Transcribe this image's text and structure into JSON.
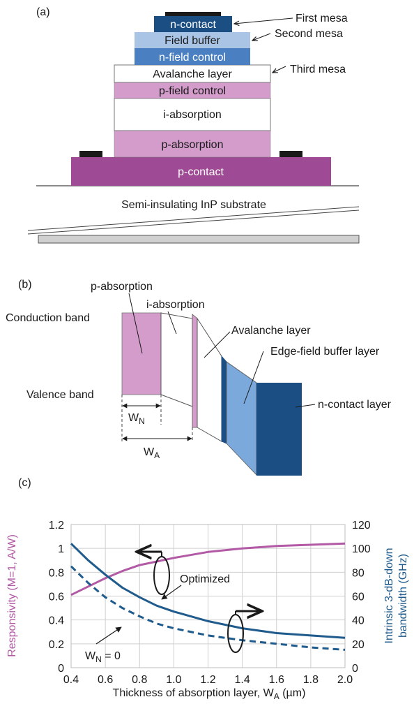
{
  "panel_a": {
    "label": "(a)",
    "layers": {
      "n_contact": "n-contact",
      "field_buffer": "Field buffer",
      "n_field_control": "n-field control",
      "avalanche": "Avalanche layer",
      "p_field_control": "p-field control",
      "i_absorption": "i-absorption",
      "p_absorption": "p-absorption",
      "p_contact": "p-contact"
    },
    "callouts": {
      "first_mesa": "First mesa",
      "second_mesa": "Second mesa",
      "third_mesa": "Third mesa"
    },
    "substrate": "Semi-insulating InP substrate"
  },
  "panel_b": {
    "label": "(b)",
    "conduction_band": "Conduction band",
    "valence_band": "Valence band",
    "p_absorption": "p-absorption",
    "i_absorption": "i-absorption",
    "avalanche": "Avalanche layer",
    "edge_field": "Edge-field buffer layer",
    "n_contact": "n-contact layer",
    "wn_main": "W",
    "wn_sub": "N",
    "wa_main": "W",
    "wa_sub": "A"
  },
  "panel_c": {
    "label": "(c)",
    "ylabel_left": "Responsivity (M=1, A/W)",
    "ylabel_right_1": "Intrinsic 3-dB-down",
    "ylabel_right_2": "bandwidth (GHz)",
    "xlabel_main": "Thickness of absorption layer, W",
    "xlabel_sub": "A",
    "xlabel_unit": " (µm)",
    "annot_optimized": "Optimized",
    "annot_wn_main": "W",
    "annot_wn_sub": "N",
    "annot_wn_eq": " = 0",
    "colors": {
      "responsivity": "#b35aa6",
      "bandwidth": "#1f5b8c"
    }
  },
  "chart_data": {
    "type": "line",
    "title": "",
    "xlabel": "Thickness of absorption layer, WA (µm)",
    "ylabel": "Responsivity (M=1, A/W)",
    "ylabel_right": "Intrinsic 3-dB-down bandwidth (GHz)",
    "xlim": [
      0.4,
      2.0
    ],
    "ylim": [
      0,
      1.2
    ],
    "ylim_right": [
      0,
      120
    ],
    "grid": true,
    "xticks": [
      "0.4",
      "0.6",
      "0.8",
      "1.0",
      "1.2",
      "1.4",
      "1.6",
      "1.8",
      "2.0"
    ],
    "yticks_left": [
      "0",
      "0.2",
      "0.4",
      "0.6",
      "0.8",
      "1",
      "1.2"
    ],
    "yticks_right": [
      "0",
      "20",
      "40",
      "60",
      "80",
      "100",
      "120"
    ],
    "series": [
      {
        "axis": "left",
        "style": "solid",
        "x": [
          0.4,
          0.5,
          0.6,
          0.7,
          0.8,
          0.9,
          1.0,
          1.2,
          1.4,
          1.6,
          1.8,
          2.0
        ],
        "y": [
          0.61,
          0.68,
          0.75,
          0.81,
          0.86,
          0.89,
          0.92,
          0.97,
          1.0,
          1.02,
          1.03,
          1.04
        ]
      },
      {
        "name": "Optimized",
        "axis": "right",
        "style": "solid",
        "x": [
          0.4,
          0.5,
          0.6,
          0.7,
          0.8,
          0.9,
          1.0,
          1.2,
          1.4,
          1.6,
          1.8,
          2.0
        ],
        "y": [
          104,
          90,
          78,
          67,
          59,
          52,
          47,
          39,
          33,
          29,
          27,
          25
        ]
      },
      {
        "name": "WN = 0",
        "axis": "right",
        "style": "dashed",
        "x": [
          0.4,
          0.5,
          0.6,
          0.7,
          0.8,
          0.9,
          1.0,
          1.2,
          1.4,
          1.6,
          1.8,
          2.0
        ],
        "y": [
          85,
          71,
          59,
          50,
          43,
          37,
          33,
          27,
          23,
          20,
          17,
          15
        ]
      }
    ]
  }
}
